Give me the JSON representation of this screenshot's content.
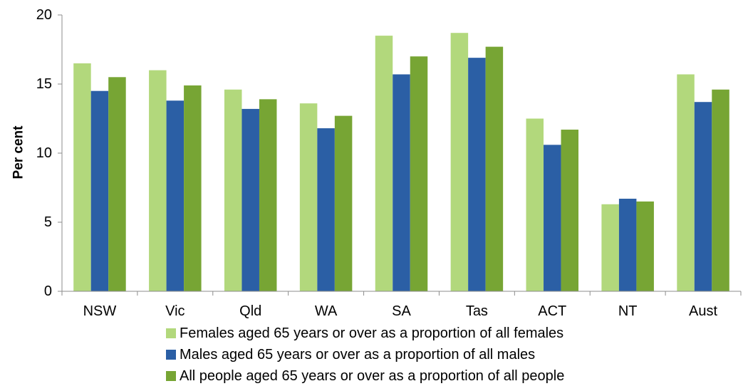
{
  "chart_data": {
    "type": "bar",
    "title": "",
    "xlabel": "",
    "ylabel": "Per cent",
    "ylim": [
      0,
      20
    ],
    "yticks": [
      0,
      5,
      10,
      15,
      20
    ],
    "grid": false,
    "legend_position": "bottom",
    "categories": [
      "NSW",
      "Vic",
      "Qld",
      "WA",
      "SA",
      "Tas",
      "ACT",
      "NT",
      "Aust"
    ],
    "series": [
      {
        "name": "Females aged 65 years or over as a proportion of all females",
        "color": "#b2d87c",
        "values": [
          16.5,
          16.0,
          14.6,
          13.6,
          18.5,
          18.7,
          12.5,
          6.3,
          15.7
        ]
      },
      {
        "name": "Males aged 65 years or over as a proportion of all males",
        "color": "#2b5fa5",
        "values": [
          14.5,
          13.8,
          13.2,
          11.8,
          15.7,
          16.9,
          10.6,
          6.7,
          13.7
        ]
      },
      {
        "name": "All people aged 65 years or over as a proportion of all people",
        "color": "#77a534",
        "values": [
          15.5,
          14.9,
          13.9,
          12.7,
          17.0,
          17.7,
          11.7,
          6.5,
          14.6
        ]
      }
    ]
  }
}
